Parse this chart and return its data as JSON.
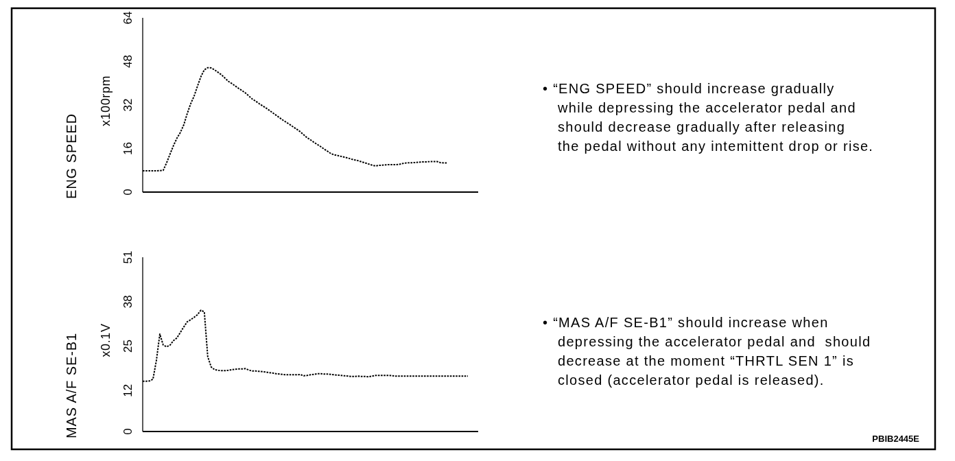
{
  "chart_data": [
    {
      "type": "line",
      "ylabel": "ENG SPEED",
      "ylim": [
        0,
        64
      ],
      "yticks": [
        0,
        16,
        32,
        48,
        64
      ],
      "tick_labels": "y",
      "line_style": "dotted",
      "categories": [
        null,
        null,
        null,
        null,
        null,
        null,
        null,
        null,
        null,
        null,
        null,
        null,
        null,
        null,
        null,
        null,
        null,
        null,
        null,
        null,
        null,
        null,
        null,
        null,
        null,
        null,
        null,
        null,
        null,
        null,
        null,
        null,
        null,
        null,
        null,
        null,
        null,
        null,
        null,
        null,
        null,
        null,
        null,
        null,
        null,
        null,
        null,
        null,
        null,
        null,
        null,
        null,
        null,
        null,
        null,
        null,
        null,
        null,
        null,
        null,
        null,
        null,
        null,
        null,
        null,
        null,
        null,
        null,
        null,
        null,
        null,
        null,
        null,
        null,
        null,
        null,
        null,
        null,
        null,
        null,
        null,
        null,
        null,
        null,
        null,
        null,
        null,
        null,
        null,
        null,
        null,
        null,
        null,
        null,
        null,
        null,
        null,
        null,
        null
      ],
      "series": [
        {
          "color": "#000000",
          "values": [
            7.8,
            7.8,
            7.8,
            7.8,
            7.8,
            7.9,
            8.0,
            10.8,
            14.0,
            17.1,
            19.8,
            21.9,
            24.7,
            28.8,
            32.4,
            35.2,
            38.9,
            42.4,
            44.9,
            45.7,
            45.6,
            44.9,
            44.0,
            43.1,
            41.9,
            40.7,
            39.9,
            39.0,
            38.1,
            37.3,
            36.4,
            35.3,
            34.2,
            33.4,
            32.5,
            31.7,
            30.9,
            30.0,
            29.1,
            28.2,
            27.3,
            26.4,
            25.6,
            24.8,
            23.9,
            23.1,
            22.2,
            21.1,
            20.0,
            19.2,
            18.3,
            17.5,
            16.7,
            15.8,
            15.0,
            14.1,
            13.7,
            13.4,
            13.1,
            12.8,
            12.5,
            12.1,
            11.8,
            11.5,
            11.1,
            10.7,
            10.3,
            9.9,
            9.6,
            9.8,
            9.9,
            10.0,
            10.1,
            10.1,
            10.1,
            10.2,
            10.5,
            10.7,
            10.8,
            10.8,
            10.9,
            11.0,
            11.1,
            11.1,
            11.2,
            11.2,
            11.2,
            10.8,
            10.7,
            10.7,
            null,
            null,
            null,
            null,
            null,
            null,
            null,
            null,
            null
          ]
        }
      ],
      "annotations": [
        "x100rpm",
        "• “ENG SPEED” should increase gradually\nwhile depressing the accelerator pedal and\nshould decrease gradually after releasing\nthe pedal without any intemittent drop or rise."
      ]
    },
    {
      "type": "line",
      "ylabel": "MAS A/F SE-B1",
      "ylim": [
        0,
        51
      ],
      "yticks": [
        0,
        12,
        25,
        38,
        51
      ],
      "tick_labels": "y",
      "line_style": "dotted",
      "categories": [
        null,
        null,
        null,
        null,
        null,
        null,
        null,
        null,
        null,
        null,
        null,
        null,
        null,
        null,
        null,
        null,
        null,
        null,
        null,
        null,
        null,
        null,
        null,
        null,
        null,
        null,
        null,
        null,
        null,
        null,
        null,
        null,
        null,
        null,
        null,
        null,
        null,
        null,
        null,
        null,
        null,
        null,
        null,
        null,
        null,
        null,
        null,
        null,
        null,
        null,
        null,
        null,
        null,
        null,
        null,
        null,
        null,
        null,
        null,
        null,
        null,
        null,
        null,
        null,
        null,
        null,
        null,
        null,
        null,
        null,
        null,
        null,
        null,
        null,
        null,
        null,
        null,
        null,
        null,
        null,
        null,
        null,
        null,
        null,
        null,
        null,
        null,
        null,
        null,
        null,
        null,
        null,
        null,
        null,
        null,
        null,
        null,
        null,
        null
      ],
      "series": [
        {
          "color": "#000000",
          "values": [
            14.7,
            14.7,
            14.8,
            15.3,
            20.8,
            28.5,
            25.3,
            24.8,
            25.3,
            26.6,
            27.4,
            29.0,
            30.6,
            32.1,
            32.7,
            33.4,
            34.2,
            35.5,
            35.0,
            21.9,
            18.9,
            18.1,
            17.9,
            17.8,
            17.8,
            17.9,
            18.1,
            18.2,
            18.3,
            18.3,
            18.4,
            18.0,
            17.7,
            17.7,
            17.6,
            17.5,
            17.4,
            17.2,
            17.1,
            16.9,
            16.8,
            16.7,
            16.6,
            16.6,
            16.6,
            16.6,
            16.7,
            16.3,
            16.4,
            16.6,
            16.7,
            16.9,
            16.9,
            16.8,
            16.8,
            16.7,
            16.6,
            16.5,
            16.4,
            16.3,
            16.2,
            16.1,
            16.1,
            16.2,
            16.1,
            16.1,
            16.0,
            16.2,
            16.4,
            16.4,
            16.4,
            16.4,
            16.4,
            16.3,
            16.2,
            16.2,
            16.2,
            16.2,
            16.2,
            16.2,
            16.2,
            16.2,
            16.2,
            16.2,
            16.2,
            16.2,
            16.2,
            16.2,
            16.2,
            16.2,
            16.2,
            16.2,
            16.2,
            16.2,
            16.2,
            16.2,
            null,
            null,
            null
          ]
        }
      ],
      "annotations": [
        "x0.1V",
        "• “MAS A/F SE-B1” should increase when\ndepressing the accelerator pedal and  should\ndecrease at the moment “THRTL SEN 1” is\nclosed (accelerator pedal is released).",
        "PBIB2445E"
      ]
    }
  ]
}
